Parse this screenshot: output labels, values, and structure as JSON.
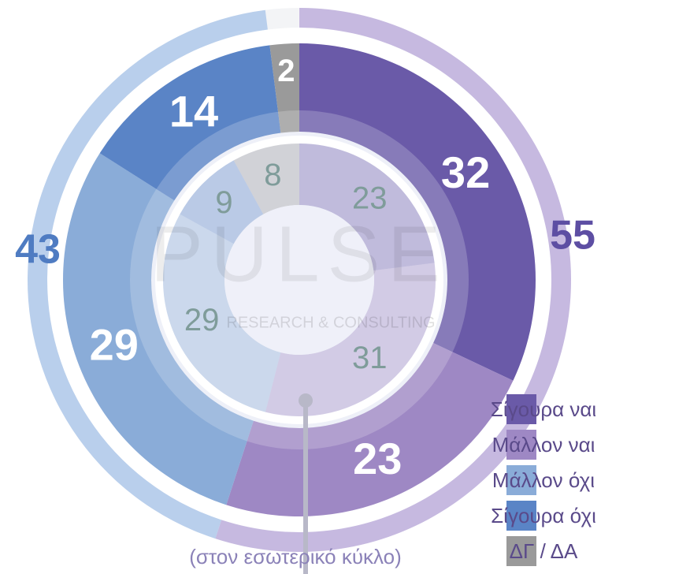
{
  "chart_data": {
    "type": "nested-donut",
    "categories": [
      "Σίγουρα ναι",
      "Μάλλον ναι",
      "Μάλλον όχι",
      "Σίγουρα όχι",
      "ΔΓ / ΔΑ"
    ],
    "colors": [
      "#6a5aa8",
      "#9e88c4",
      "#8aacd8",
      "#5a84c6",
      "#9a9a9a"
    ],
    "outer": {
      "values": [
        55,
        43
      ],
      "colors": [
        "#c6b9e0",
        "#b9cfec"
      ],
      "label_colors": [
        "#5d4ea3",
        "#4f7cc2"
      ]
    },
    "middle": {
      "values": [
        32,
        23,
        29,
        14,
        2
      ]
    },
    "inner": {
      "values": [
        23,
        31,
        29,
        9,
        8
      ]
    },
    "note": "(στον εσωτερικό κύκλο)",
    "watermark": "PULSE",
    "watermark_sub": "RESEARCH & CONSULTING"
  }
}
